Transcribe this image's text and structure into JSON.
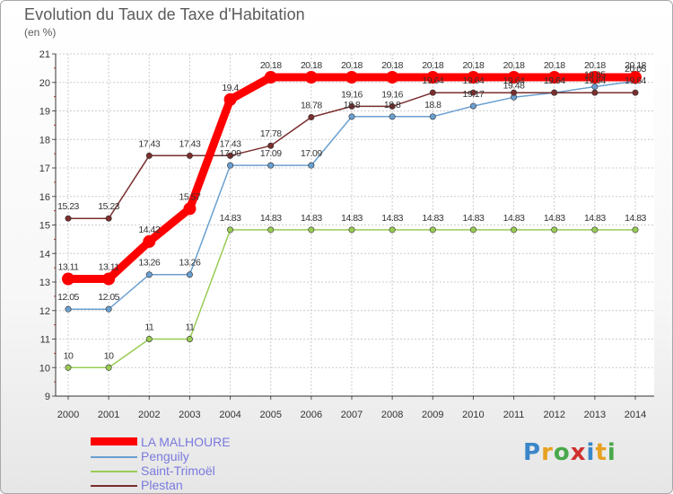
{
  "header": {
    "title": "Evolution du Taux de Taxe d'Habitation",
    "subtitle": "(en %)"
  },
  "logo": {
    "text": "Proxiti",
    "colors": [
      "#3a86c8",
      "#e8a020",
      "#4aa84a",
      "#d03030",
      "#3a86c8",
      "#e8a020",
      "#4aa84a"
    ]
  },
  "chart_data": {
    "type": "line",
    "title": "Evolution du Taux de Taxe d'Habitation",
    "subtitle": "(en %)",
    "xlabel": "",
    "ylabel": "",
    "x": [
      "2000",
      "2001",
      "2002",
      "2003",
      "2004",
      "2005",
      "2006",
      "2007",
      "2008",
      "2009",
      "2010",
      "2011",
      "2012",
      "2013",
      "2014"
    ],
    "ylim": [
      9,
      21
    ],
    "yticks": [
      "9",
      "10",
      "11",
      "12",
      "13",
      "14",
      "15",
      "16",
      "17",
      "18",
      "19",
      "20",
      "21"
    ],
    "grid": true,
    "legend_position": "bottom-left",
    "series": [
      {
        "name": "LA MALHOURE",
        "color": "#ff0000",
        "values": [
          13.11,
          13.11,
          14.42,
          15.57,
          19.4,
          20.18,
          20.18,
          20.18,
          20.18,
          20.18,
          20.18,
          20.18,
          20.18,
          20.18,
          20.18
        ],
        "labels": [
          "13.11",
          "13.11",
          "14.42",
          "15.57",
          "19.4",
          "20.18",
          "20.18",
          "20.18",
          "20.18",
          "20.18",
          "20.18",
          "20.18",
          "20.18",
          "20.18",
          "20.18"
        ]
      },
      {
        "name": "Penguily",
        "color": "#6a9fd0",
        "values": [
          12.05,
          12.05,
          13.26,
          13.26,
          17.09,
          17.09,
          17.09,
          18.8,
          18.8,
          18.8,
          19.17,
          19.48,
          19.64,
          19.85,
          20.05
        ],
        "labels": [
          "12.05",
          "12.05",
          "13.26",
          "13.26",
          "17.09",
          "17.09",
          "17.09",
          "18.8",
          "18.8",
          "18.8",
          "19.17",
          "19.48",
          "19.64",
          "19.85",
          "20.05"
        ]
      },
      {
        "name": "Saint-Trimoël",
        "color": "#99cc55",
        "values": [
          10,
          10,
          11,
          11,
          14.83,
          14.83,
          14.83,
          14.83,
          14.83,
          14.83,
          14.83,
          14.83,
          14.83,
          14.83,
          14.83
        ],
        "labels": [
          "10",
          "10",
          "11",
          "11",
          "14.83",
          "14.83",
          "14.83",
          "14.83",
          "14.83",
          "14.83",
          "14.83",
          "14.83",
          "14.83",
          "14.83",
          "14.83"
        ]
      },
      {
        "name": "Plestan",
        "color": "#7a2e2e",
        "values": [
          15.23,
          15.23,
          17.43,
          17.43,
          17.43,
          17.78,
          18.78,
          19.16,
          19.16,
          19.64,
          19.64,
          19.64,
          19.64,
          19.64,
          19.64
        ],
        "labels": [
          "15.23",
          "15.23",
          "17.43",
          "17.43",
          "17.43",
          "17.78",
          "18.78",
          "19.16",
          "19.16",
          "19.64",
          "19.64",
          "19.64",
          "19.64",
          "19.64",
          "19.64"
        ]
      }
    ]
  }
}
